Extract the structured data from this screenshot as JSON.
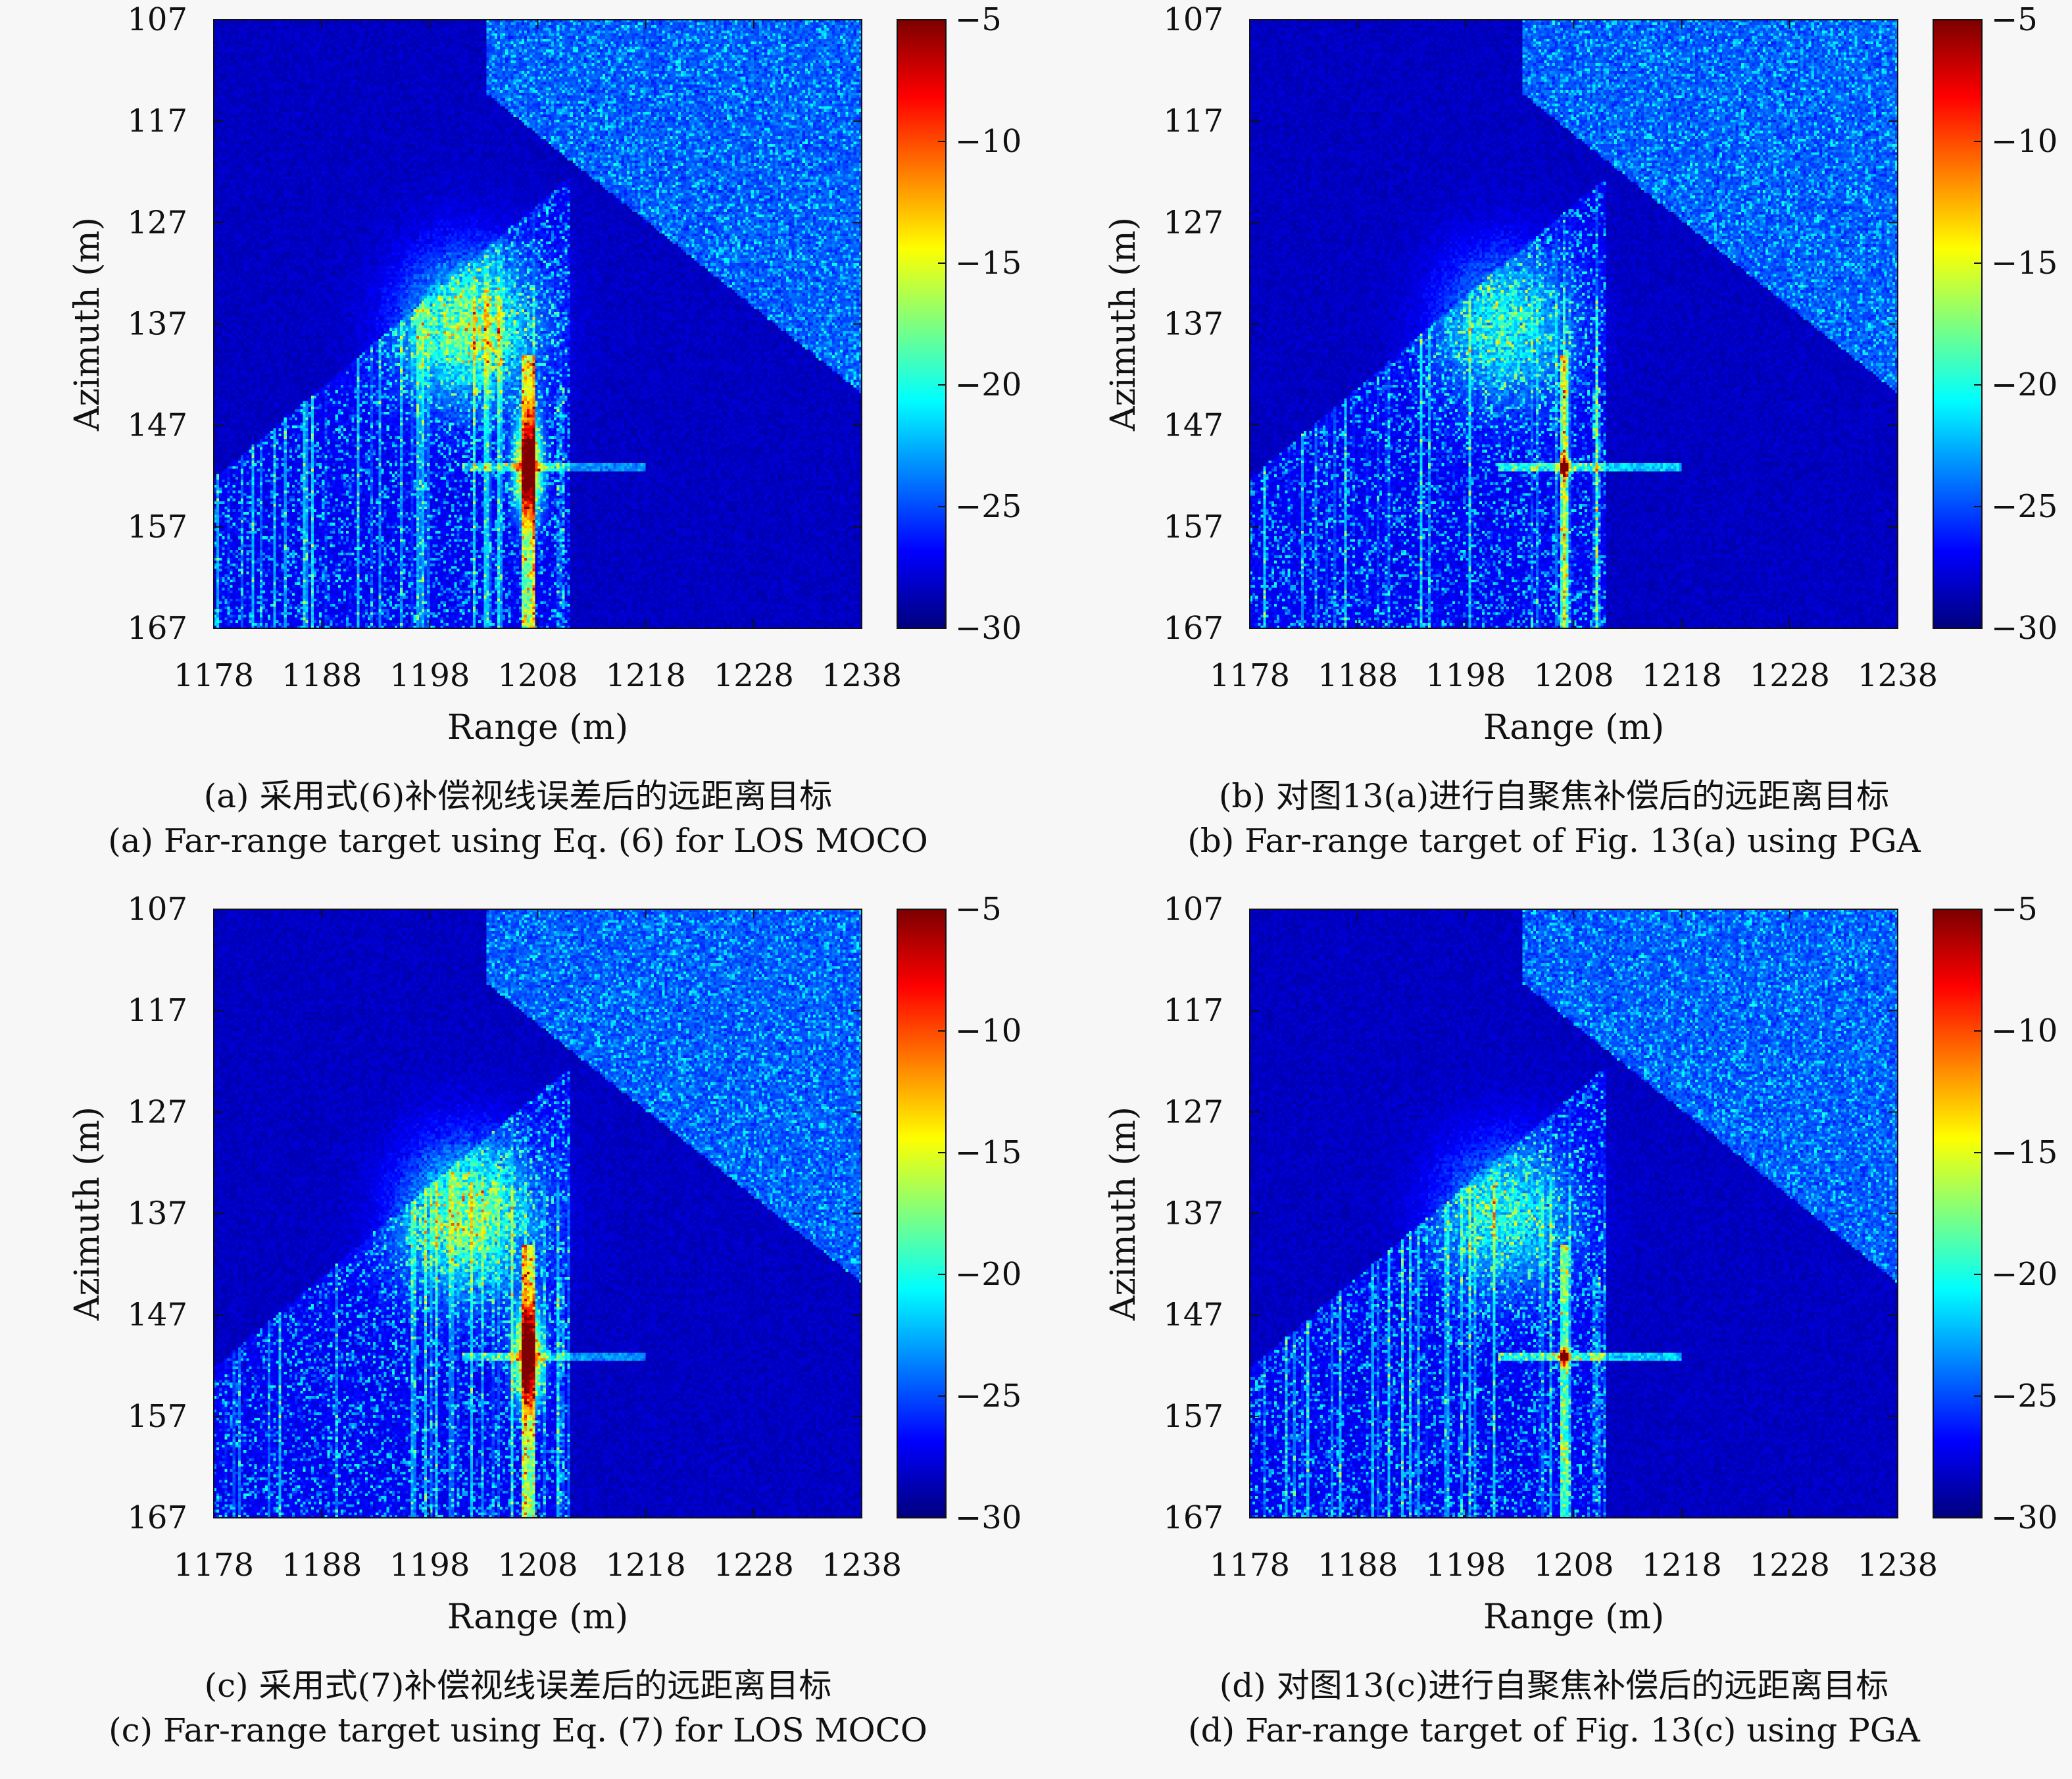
{
  "chart_data": [
    {
      "type": "heatmap",
      "caption_zh": "(a) 采用式(6)补偿视线误差后的远距离目标",
      "caption_en": "(a) Far-range target using Eq. (6) for LOS MOCO",
      "xlabel": "Range (m)",
      "ylabel": "Azimuth (m)",
      "xticks": [
        "1178",
        "1188",
        "1198",
        "1208",
        "1218",
        "1228",
        "1238"
      ],
      "yticks": [
        "107",
        "117",
        "127",
        "137",
        "147",
        "157",
        "167"
      ],
      "xlim": [
        1178,
        1238
      ],
      "ylim": [
        107,
        167
      ],
      "colorbar": {
        "ticks": [
          "-5",
          "-10",
          "-15",
          "-20",
          "-25",
          "-30"
        ],
        "range": [
          -30,
          -5
        ],
        "colormap": "jet"
      },
      "target": {
        "range": 1207,
        "azimuth": 151
      },
      "focus": "defocused"
    },
    {
      "type": "heatmap",
      "caption_zh": "(b) 对图13(a)进行自聚焦补偿后的远距离目标",
      "caption_en": "(b) Far-range target of Fig. 13(a) using PGA",
      "xlabel": "Range (m)",
      "ylabel": "Azimuth (m)",
      "xticks": [
        "1178",
        "1188",
        "1198",
        "1208",
        "1218",
        "1228",
        "1238"
      ],
      "yticks": [
        "107",
        "117",
        "127",
        "137",
        "147",
        "157",
        "167"
      ],
      "xlim": [
        1178,
        1238
      ],
      "ylim": [
        107,
        167
      ],
      "colorbar": {
        "ticks": [
          "-5",
          "-10",
          "-15",
          "-20",
          "-25",
          "-30"
        ],
        "range": [
          -30,
          -5
        ],
        "colormap": "jet"
      },
      "target": {
        "range": 1207,
        "azimuth": 151
      },
      "focus": "focused"
    },
    {
      "type": "heatmap",
      "caption_zh": "(c) 采用式(7)补偿视线误差后的远距离目标",
      "caption_en": "(c) Far-range target using Eq. (7) for LOS MOCO",
      "xlabel": "Range (m)",
      "ylabel": "Azimuth (m)",
      "xticks": [
        "1178",
        "1188",
        "1198",
        "1208",
        "1218",
        "1228",
        "1238"
      ],
      "yticks": [
        "107",
        "117",
        "127",
        "137",
        "147",
        "157",
        "167"
      ],
      "xlim": [
        1178,
        1238
      ],
      "ylim": [
        107,
        167
      ],
      "colorbar": {
        "ticks": [
          "-5",
          "-10",
          "-15",
          "-20",
          "-25",
          "-30"
        ],
        "range": [
          -30,
          -5
        ],
        "colormap": "jet"
      },
      "target": {
        "range": 1207,
        "azimuth": 151
      },
      "focus": "defocused"
    },
    {
      "type": "heatmap",
      "caption_zh": "(d) 对图13(c)进行自聚焦补偿后的远距离目标",
      "caption_en": "(d) Far-range target of Fig. 13(c) using PGA",
      "xlabel": "Range (m)",
      "ylabel": "Azimuth (m)",
      "xticks": [
        "1178",
        "1188",
        "1198",
        "1208",
        "1218",
        "1228",
        "1238"
      ],
      "yticks": [
        "107",
        "117",
        "127",
        "137",
        "147",
        "157",
        "167"
      ],
      "xlim": [
        1178,
        1238
      ],
      "ylim": [
        107,
        167
      ],
      "colorbar": {
        "ticks": [
          "-5",
          "-10",
          "-15",
          "-20",
          "-25",
          "-30"
        ],
        "range": [
          -30,
          -5
        ],
        "colormap": "jet"
      },
      "target": {
        "range": 1207,
        "azimuth": 151
      },
      "focus": "focused"
    }
  ]
}
